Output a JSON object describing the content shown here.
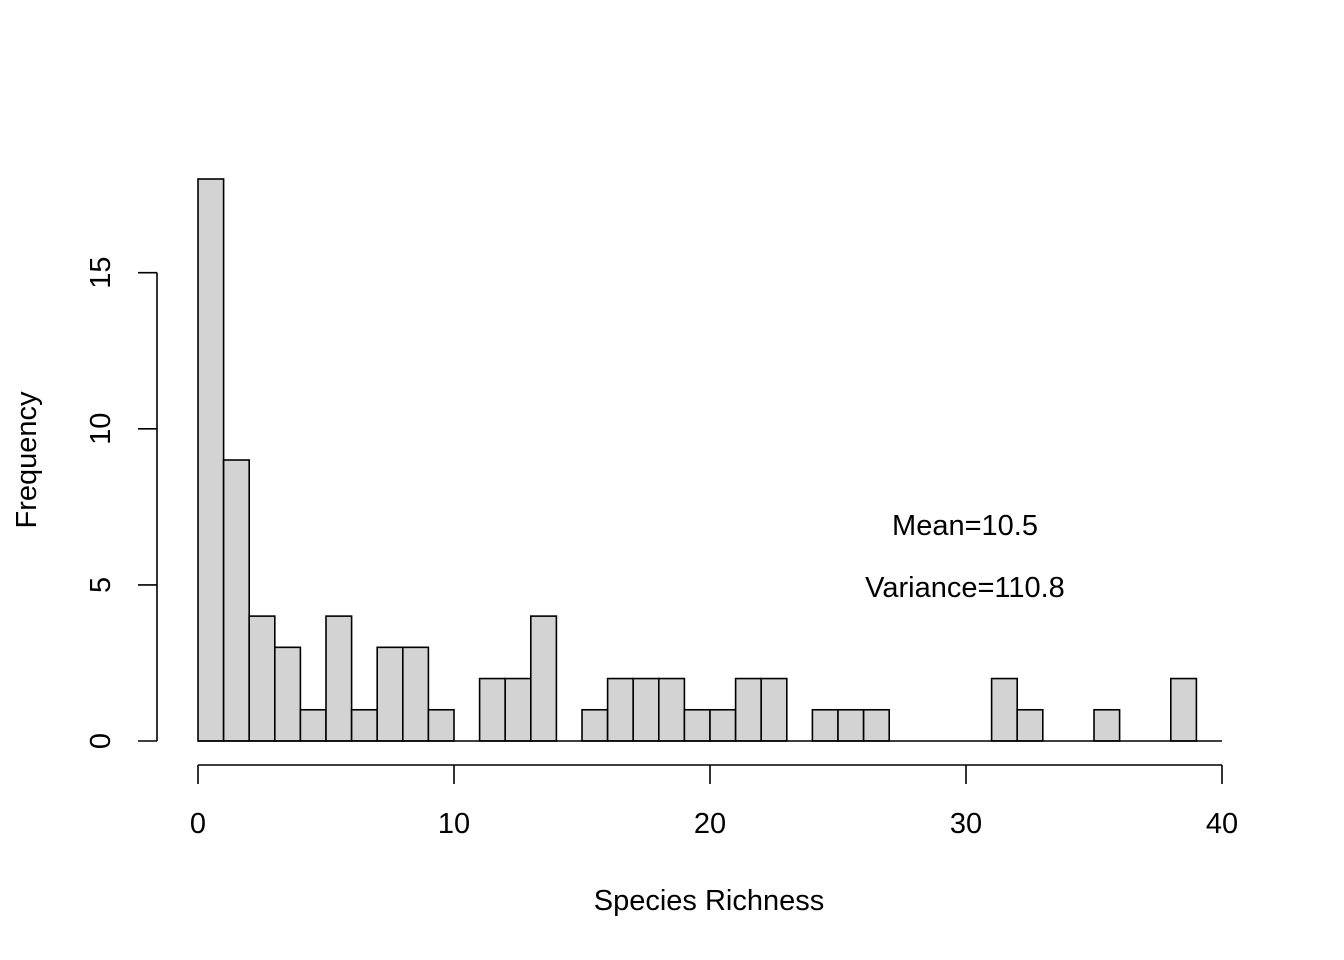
{
  "chart_data": {
    "type": "bar",
    "title": "",
    "xlabel": "Species Richness",
    "ylabel": "Frequency",
    "bin_width": 1,
    "bin_starts": [
      0,
      1,
      2,
      3,
      4,
      5,
      6,
      7,
      8,
      9,
      10,
      11,
      12,
      13,
      14,
      15,
      16,
      17,
      18,
      19,
      20,
      21,
      22,
      23,
      24,
      25,
      26,
      27,
      28,
      29,
      30,
      31,
      32,
      33,
      34,
      35,
      36,
      37,
      38
    ],
    "values": [
      18,
      9,
      4,
      3,
      1,
      4,
      1,
      3,
      3,
      1,
      0,
      2,
      2,
      4,
      0,
      1,
      2,
      2,
      2,
      1,
      1,
      2,
      2,
      0,
      1,
      1,
      1,
      0,
      0,
      0,
      0,
      2,
      1,
      0,
      0,
      1,
      0,
      0,
      2
    ],
    "xlim": [
      0,
      40
    ],
    "ylim": [
      0,
      18
    ],
    "x_ticks": [
      0,
      10,
      20,
      30,
      40
    ],
    "y_ticks": [
      0,
      5,
      10,
      15
    ],
    "bar_color": "#d3d3d3",
    "annotations": [
      "Mean=10.5",
      "Variance=110.8"
    ],
    "grid": false
  }
}
